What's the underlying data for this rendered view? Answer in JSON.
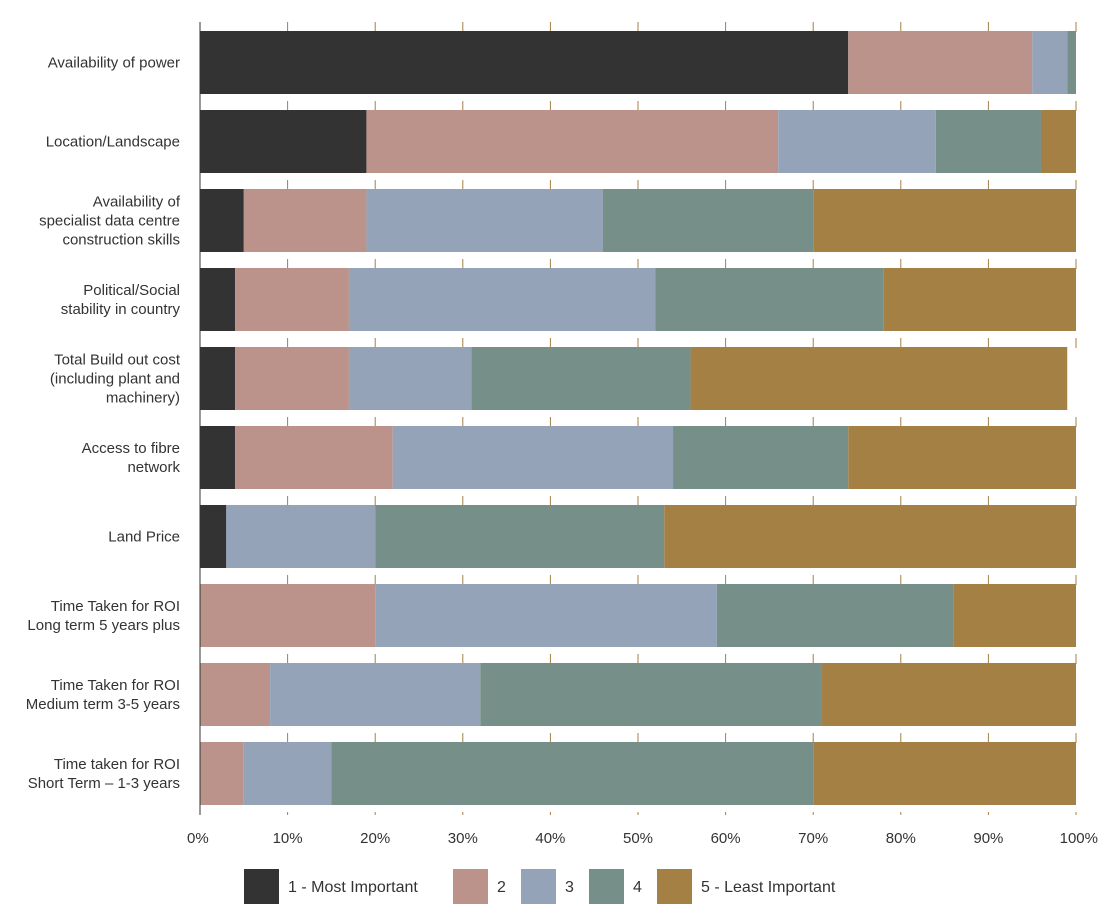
{
  "chart_data": {
    "type": "bar",
    "orientation": "horizontal",
    "stacked": "percent",
    "categories": [
      [
        "Availability of power"
      ],
      [
        "Location/Landscape"
      ],
      [
        "Availability of",
        "specialist data centre",
        "construction skills"
      ],
      [
        "Political/Social",
        "stability in country"
      ],
      [
        "Total Build out cost",
        "(including plant and",
        "machinery)"
      ],
      [
        "Access to fibre",
        "network"
      ],
      [
        "Land Price"
      ],
      [
        "Time Taken for ROI",
        "Long term 5 years plus"
      ],
      [
        "Time Taken for ROI",
        "Medium term 3-5 years"
      ],
      [
        "Time taken for ROI",
        "Short Term – 1-3 years"
      ]
    ],
    "series": [
      {
        "name": "1 - Most Important",
        "color": "#333333",
        "values": [
          74,
          19,
          5,
          4,
          4,
          4,
          3,
          0,
          0,
          0
        ]
      },
      {
        "name": "2",
        "color": "#bb938a",
        "values": [
          21,
          47,
          14,
          13,
          13,
          18,
          0,
          20,
          8,
          5
        ]
      },
      {
        "name": "3",
        "color": "#95a3b8",
        "values": [
          4,
          18,
          27,
          35,
          14,
          32,
          17,
          39,
          24,
          10
        ]
      },
      {
        "name": "4",
        "color": "#768f88",
        "values": [
          1,
          12,
          24,
          26,
          25,
          20,
          33,
          27,
          39,
          55
        ]
      },
      {
        "name": "5 - Least Important",
        "color": "#a48045",
        "values": [
          0,
          4,
          30,
          22,
          43,
          26,
          47,
          14,
          29,
          30
        ]
      }
    ],
    "xlim": [
      0,
      100
    ],
    "xticks": [
      "0%",
      "10%",
      "20%",
      "30%",
      "40%",
      "50%",
      "60%",
      "70%",
      "80%",
      "90%",
      "100%"
    ],
    "grid": "vertical dashed",
    "legend_position": "bottom"
  }
}
